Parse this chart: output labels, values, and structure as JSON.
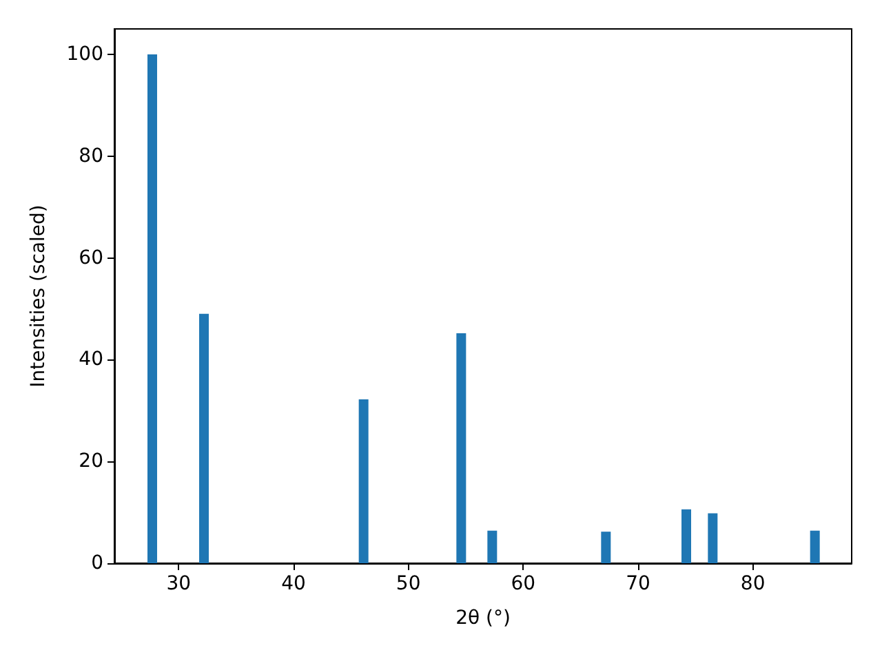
{
  "chart_data": {
    "type": "bar",
    "xlabel": "2θ (°)",
    "ylabel": "Intensities (scaled)",
    "x": [
      27.7,
      32.2,
      46.1,
      54.6,
      57.3,
      67.2,
      74.2,
      76.5,
      85.4
    ],
    "values": [
      100,
      49,
      32.2,
      45.2,
      6.4,
      6.2,
      10.6,
      9.8,
      6.4
    ],
    "color": "#1f77b4",
    "xlim": [
      24.4,
      88.6
    ],
    "xticks": [
      30,
      40,
      50,
      60,
      70,
      80
    ],
    "ylim": [
      0,
      105
    ],
    "yticks": [
      0,
      20,
      40,
      60,
      80,
      100
    ],
    "grid": false
  }
}
